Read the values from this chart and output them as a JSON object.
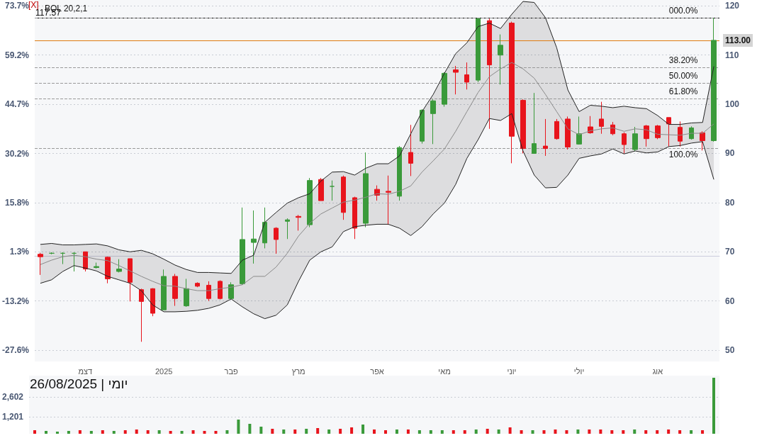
{
  "chart_data": [
    {
      "type": "candlestick",
      "title": "BOL 20,2,1",
      "annotations": [
        "[X]",
        {
          "text": "000.0%",
          "y": 117.57
        },
        {
          "text": "38.20%",
          "y": 107.46
        },
        {
          "text": "50.00%",
          "y": 104.3
        },
        {
          "text": "61.80%",
          "y": 101.2
        },
        {
          "text": "100.0%",
          "y": 91.1
        }
      ],
      "categories": [
        null,
        null,
        null,
        null,
        "דצמ",
        null,
        null,
        null,
        null,
        null,
        null,
        "2025",
        null,
        null,
        null,
        null,
        null,
        "פבר",
        null,
        null,
        null,
        null,
        null,
        "מרץ",
        null,
        null,
        null,
        null,
        null,
        null,
        "אפר",
        null,
        null,
        null,
        null,
        null,
        "מאי",
        null,
        null,
        null,
        null,
        null,
        "יוני",
        null,
        null,
        null,
        null,
        null,
        "יולי",
        null,
        null,
        null,
        null,
        null,
        null,
        "אוג",
        null,
        null,
        null,
        null,
        null
      ],
      "ohlc": [
        [
          69.5,
          69.8,
          65.3,
          69.0
        ],
        [
          69.7,
          69.9,
          69.5,
          69.7
        ],
        [
          69.7,
          69.9,
          67.5,
          69.7
        ],
        [
          69.7,
          69.9,
          66.0,
          69.7
        ],
        [
          70,
          70,
          66,
          66.5
        ],
        [
          66.8,
          67.8,
          66.6,
          67
        ],
        [
          68.9,
          69,
          63.6,
          64.5
        ],
        [
          66,
          68.5,
          65.8,
          66.5
        ],
        [
          68.6,
          68.6,
          59.9,
          63.8
        ],
        [
          62.3,
          62.5,
          51.7,
          59.9
        ],
        [
          62.5,
          62.6,
          56.9,
          57.5
        ],
        [
          58.2,
          66.4,
          58.2,
          65
        ],
        [
          65,
          65.5,
          59,
          60.5
        ],
        [
          59,
          64.5,
          58.8,
          62.5
        ],
        [
          63.6,
          63.8,
          62.8,
          63
        ],
        [
          63.2,
          64,
          60,
          60.5
        ],
        [
          64,
          64.2,
          60.3,
          60.5
        ],
        [
          60.5,
          63.8,
          60.3,
          63.3
        ],
        [
          63.5,
          79,
          63.3,
          72.5
        ],
        [
          71.9,
          78.4,
          67.6,
          72.6
        ],
        [
          71.8,
          79,
          70.7,
          76
        ],
        [
          74.8,
          75,
          69.6,
          72.5
        ],
        [
          76.2,
          76.8,
          72.6,
          76.5
        ],
        [
          77.2,
          77.5,
          74.3,
          77
        ],
        [
          75.5,
          85,
          75,
          84.5
        ],
        [
          84.7,
          85,
          80.4,
          80.4
        ],
        [
          83.3,
          84.5,
          80.4,
          83.3
        ],
        [
          85.2,
          85.5,
          76.5,
          78
        ],
        [
          81,
          81.2,
          72.6,
          74.8
        ],
        [
          75.8,
          90.2,
          75,
          85.9
        ],
        [
          82.7,
          83.5,
          80.4,
          81.5
        ],
        [
          82.3,
          85.5,
          75.5,
          82.1
        ],
        [
          81.3,
          91.5,
          80.4,
          91.2
        ],
        [
          90.2,
          95.8,
          85.4,
          88
        ],
        [
          92.5,
          99,
          92,
          98.8
        ],
        [
          98.1,
          101,
          91.9,
          100.7
        ],
        [
          100,
          106.5,
          99.5,
          106.3
        ],
        [
          107,
          107.8,
          102,
          106.5
        ],
        [
          106,
          108.5,
          103,
          104.5
        ],
        [
          104.9,
          117.5,
          104.5,
          117.4
        ],
        [
          117,
          117.4,
          95,
          108
        ],
        [
          110,
          114.2,
          104,
          112
        ],
        [
          116.5,
          116.8,
          88,
          93.5
        ],
        [
          100.8,
          101,
          90,
          91
        ],
        [
          90,
          102.3,
          90,
          92
        ],
        [
          91.5,
          97,
          89.5,
          91
        ],
        [
          96.5,
          97,
          92.8,
          93
        ],
        [
          97,
          97.5,
          90.8,
          91.3
        ],
        [
          91.9,
          97.5,
          91.8,
          94
        ],
        [
          95.4,
          97.6,
          94,
          94.2
        ],
        [
          97,
          100.5,
          94,
          95.5
        ],
        [
          95.8,
          96.4,
          93.7,
          94
        ],
        [
          94,
          94.3,
          90,
          91.8
        ],
        [
          90.8,
          95.4,
          90.5,
          94
        ],
        [
          95.6,
          95.8,
          91.4,
          93
        ],
        [
          95.6,
          95.8,
          92.9,
          93.2
        ],
        [
          97.3,
          97.3,
          91.4,
          96
        ],
        [
          95.3,
          96.5,
          91.4,
          92.5
        ],
        [
          93,
          95.5,
          92.8,
          95.2
        ],
        [
          94.2,
          94.5,
          90.6,
          92.6
        ],
        [
          92.6,
          117.57,
          92.4,
          113
        ]
      ],
      "colors": [
        "#e8141c",
        "#3a9a3a",
        "#3a9a3a",
        "#3a9a3a",
        "#e8141c",
        "#3a9a3a",
        "#e8141c",
        "#3a9a3a",
        "#e8141c",
        "#e8141c",
        "#e8141c",
        "#3a9a3a",
        "#e8141c",
        "#3a9a3a",
        "#e8141c",
        "#e8141c",
        "#e8141c",
        "#3a9a3a",
        "#3a9a3a",
        "#3a9a3a",
        "#3a9a3a",
        "#e8141c",
        "#3a9a3a",
        "#e8141c",
        "#3a9a3a",
        "#e8141c",
        "#3a9a3a",
        "#e8141c",
        "#e8141c",
        "#3a9a3a",
        "#e8141c",
        "#e8141c",
        "#3a9a3a",
        "#e8141c",
        "#3a9a3a",
        "#3a9a3a",
        "#3a9a3a",
        "#e8141c",
        "#e8141c",
        "#3a9a3a",
        "#e8141c",
        "#3a9a3a",
        "#e8141c",
        "#e8141c",
        "#3a9a3a",
        "#e8141c",
        "#e8141c",
        "#e8141c",
        "#3a9a3a",
        "#e8141c",
        "#e8141c",
        "#e8141c",
        "#e8141c",
        "#3a9a3a",
        "#e8141c",
        "#e8141c",
        "#e8141c",
        "#e8141c",
        "#3a9a3a",
        "#e8141c",
        "#3a9a3a"
      ],
      "series": [
        {
          "type": "line",
          "color": "#8a8a8a",
          "values": [
            67.4,
            68.3,
            69,
            69.3,
            69,
            68.5,
            68.2,
            67.2,
            66.1,
            65,
            64,
            63.1,
            63,
            62.5,
            62.1,
            62.1,
            62.5,
            62.8,
            63.3,
            65,
            65,
            66.9,
            69.7,
            73.2,
            75.8,
            77.7,
            78.9,
            80.1,
            80.5,
            81.1,
            81.8,
            81.7,
            82.3,
            83.4,
            86.2,
            88.5,
            90.9,
            94.5,
            98.5,
            102.4,
            105.6,
            107.2,
            108.5,
            107.2,
            105.3,
            102,
            98.5,
            95,
            93.8,
            94.6,
            95,
            95.2,
            94.5,
            95,
            94.8,
            93.9,
            93.8,
            93.7,
            94.1,
            94.1,
            96
          ],
          "upper": [
            71.5,
            71.7,
            71.4,
            71.4,
            71.5,
            71.6,
            71.2,
            70.4,
            70,
            70.3,
            69.6,
            68.5,
            67.3,
            66.4,
            65.8,
            65.8,
            65.7,
            65.6,
            68.3,
            69.3,
            76,
            78,
            79.9,
            81,
            81.8,
            84.4,
            86.2,
            86.3,
            85.6,
            87,
            87.9,
            87.9,
            89.5,
            94,
            98.5,
            102,
            106.3,
            110.3,
            112.5,
            115.8,
            116.5,
            115.4,
            118.3,
            120.9,
            120.7,
            117.6,
            111.5,
            102.9,
            98.5,
            99.8,
            99.6,
            99.3,
            99.6,
            99.3,
            99.1,
            97.7,
            95.9,
            95.9,
            96.2,
            96.3,
            107.7
          ],
          "lower": [
            63.6,
            64.3,
            66,
            67.2,
            66.7,
            66.1,
            65,
            64.3,
            63.6,
            62.1,
            59.2,
            57.8,
            57.8,
            57.9,
            58.1,
            58.5,
            59.2,
            60.4,
            58.8,
            57.4,
            56.4,
            57.1,
            59.2,
            64,
            68.3,
            70,
            71,
            74.1,
            75.1,
            75.4,
            75.6,
            75.6,
            74.8,
            73.3,
            75.1,
            77.7,
            79.9,
            83.7,
            89,
            92.8,
            97.1,
            96.7,
            98.1,
            90.5,
            85.6,
            83,
            83.1,
            85.6,
            89,
            89.5,
            89.9,
            90.9,
            89.9,
            90.5,
            90.1,
            90.3,
            91.4,
            91.6,
            92.1,
            92.4,
            84.7
          ]
        },
        {
          "type": "line",
          "color": "#222222",
          "values": [
            71.5,
            71.7,
            71.4,
            71.4,
            71.5,
            71.6,
            71.2,
            70.4,
            70,
            70.3,
            69.6,
            68.5,
            67.3,
            66.4,
            65.8,
            65.8,
            65.7,
            65.6,
            68.3,
            69.3,
            76,
            78,
            79.9,
            81,
            81.8,
            84.4,
            86.2,
            86.3,
            85.6,
            87,
            87.9,
            87.9,
            89.5,
            94,
            98.5,
            102,
            106.3,
            110.3,
            112.5,
            115.8,
            116.5,
            115.4,
            118.3,
            120.9,
            120.7,
            117.6,
            111.5,
            102.9,
            98.5,
            99.8,
            99.6,
            99.3,
            99.6,
            99.3,
            99.1,
            97.7,
            95.9,
            95.9,
            96.2,
            96.3,
            107.7
          ]
        },
        {
          "type": "line",
          "color": "#222222",
          "values": [
            63.6,
            64.3,
            66,
            67.2,
            66.7,
            66.1,
            65,
            64.3,
            63.6,
            62.1,
            59.2,
            57.8,
            57.8,
            57.9,
            58.1,
            58.5,
            59.2,
            60.4,
            58.8,
            57.4,
            56.4,
            57.1,
            59.2,
            64,
            68.3,
            70,
            71,
            74.1,
            75.1,
            75.4,
            75.6,
            75.6,
            74.8,
            73.3,
            75.1,
            77.7,
            79.9,
            83.7,
            89,
            92.8,
            97.1,
            96.7,
            98.1,
            90.5,
            85.6,
            83,
            83.1,
            85.6,
            89,
            89.5,
            89.9,
            90.9,
            89.9,
            90.5,
            90.1,
            90.3,
            91.4,
            91.6,
            92.1,
            92.4,
            84.7
          ]
        }
      ],
      "ylim": [
        47.7,
        121.2
      ],
      "yticks": [
        50,
        60,
        70,
        80,
        90,
        100,
        110,
        120
      ],
      "y2lim": [
        -30.95,
        75.44
      ],
      "y2ticks": [
        {
          "value": -27.6,
          "label": "-27.6%"
        },
        {
          "value": -13.2,
          "label": "-13.2%"
        },
        {
          "value": 1.3,
          "label": "1.3%"
        },
        {
          "value": 15.8,
          "label": "15.8%"
        },
        {
          "value": 30.2,
          "label": "30.2%"
        },
        {
          "value": 44.7,
          "label": "44.7%"
        },
        {
          "value": 59.2,
          "label": "59.2%"
        },
        {
          "value": 73.7,
          "label": "73.7%"
        }
      ],
      "grid": "y",
      "ref_lines": [
        {
          "axis": "y",
          "value": 117.57,
          "label": "117.57",
          "color": "#111111",
          "line_style": "solid"
        },
        {
          "axis": "y",
          "value": 113,
          "label": "113.00",
          "color": "#e07b10",
          "line_style": "solid"
        },
        {
          "axis": "y",
          "value": 117.57,
          "color": "#999999",
          "line_style": "dashed"
        },
        {
          "axis": "y",
          "value": 107.46,
          "color": "#999999",
          "line_style": "dashed"
        },
        {
          "axis": "y",
          "value": 104.3,
          "color": "#999999",
          "line_style": "dashed"
        },
        {
          "axis": "y",
          "value": 101.2,
          "color": "#999999",
          "line_style": "dashed"
        },
        {
          "axis": "y",
          "value": 91.1,
          "color": "#999999",
          "line_style": "dashed"
        }
      ]
    },
    {
      "type": "bar",
      "annotations": [
        "יומי | 26/08/2025"
      ],
      "categories": [
        null,
        null,
        null,
        null,
        null,
        null,
        null,
        null,
        null,
        null,
        null,
        null,
        null,
        null,
        null,
        null,
        null,
        null,
        null,
        null,
        null,
        null,
        null,
        null,
        null,
        null,
        null,
        null,
        null,
        null,
        null,
        null,
        null,
        null,
        null,
        null,
        null,
        null,
        null,
        null,
        null,
        null,
        null,
        null,
        null,
        null,
        null,
        null,
        null,
        null,
        null,
        null,
        null,
        null,
        null,
        null,
        null,
        null,
        null,
        null,
        null
      ],
      "values": [
        250,
        200,
        150,
        200,
        250,
        200,
        250,
        200,
        250,
        300,
        250,
        250,
        200,
        200,
        250,
        200,
        200,
        250,
        1000,
        700,
        500,
        350,
        300,
        300,
        350,
        400,
        300,
        350,
        450,
        650,
        300,
        250,
        300,
        300,
        250,
        250,
        250,
        250,
        250,
        300,
        350,
        300,
        450,
        250,
        250,
        250,
        300,
        250,
        300,
        300,
        300,
        250,
        250,
        300,
        250,
        250,
        300,
        250,
        250,
        250,
        3950
      ],
      "colors": [
        "#e8141c",
        "#3a9a3a",
        "#3a9a3a",
        "#3a9a3a",
        "#e8141c",
        "#3a9a3a",
        "#e8141c",
        "#3a9a3a",
        "#e8141c",
        "#e8141c",
        "#e8141c",
        "#3a9a3a",
        "#e8141c",
        "#3a9a3a",
        "#e8141c",
        "#e8141c",
        "#e8141c",
        "#3a9a3a",
        "#3a9a3a",
        "#3a9a3a",
        "#3a9a3a",
        "#e8141c",
        "#3a9a3a",
        "#e8141c",
        "#3a9a3a",
        "#e8141c",
        "#3a9a3a",
        "#e8141c",
        "#e8141c",
        "#3a9a3a",
        "#e8141c",
        "#e8141c",
        "#3a9a3a",
        "#e8141c",
        "#3a9a3a",
        "#3a9a3a",
        "#3a9a3a",
        "#e8141c",
        "#e8141c",
        "#3a9a3a",
        "#e8141c",
        "#3a9a3a",
        "#e8141c",
        "#e8141c",
        "#3a9a3a",
        "#e8141c",
        "#e8141c",
        "#e8141c",
        "#3a9a3a",
        "#e8141c",
        "#e8141c",
        "#e8141c",
        "#e8141c",
        "#3a9a3a",
        "#e8141c",
        "#e8141c",
        "#e8141c",
        "#e8141c",
        "#3a9a3a",
        "#e8141c",
        "#3a9a3a"
      ],
      "ylim": [
        0,
        4100
      ],
      "yticks": [
        {
          "value": 1201,
          "label": "1,201"
        },
        {
          "value": 2602,
          "label": "2,602"
        }
      ],
      "grid": "y",
      "tick_labels": "y"
    }
  ]
}
